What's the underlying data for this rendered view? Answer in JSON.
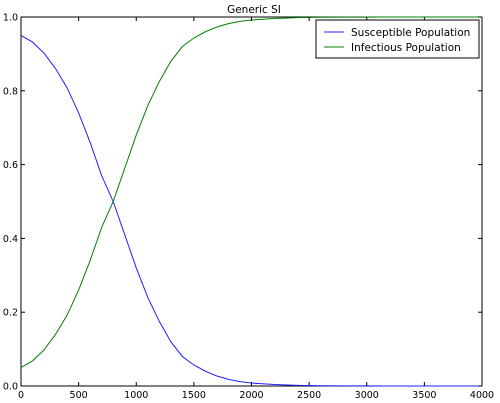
{
  "chart_data": {
    "type": "line",
    "title": "Generic SI",
    "xlabel": "",
    "ylabel": "",
    "xlim": [
      0,
      4000
    ],
    "ylim": [
      0.0,
      1.0
    ],
    "x_ticks": [
      "0",
      "500",
      "1000",
      "1500",
      "2000",
      "2500",
      "3000",
      "3500",
      "4000"
    ],
    "y_ticks": [
      "0.0",
      "0.2",
      "0.4",
      "0.6",
      "0.8",
      "1.0"
    ],
    "grid": false,
    "legend_position": "top-right",
    "series": [
      {
        "name": "Susceptible Population",
        "color": "#1f1fff",
        "x": [
          0,
          100,
          200,
          300,
          400,
          500,
          600,
          700,
          800,
          900,
          1000,
          1100,
          1200,
          1300,
          1400,
          1500,
          1600,
          1700,
          1800,
          1900,
          2000,
          2200,
          2400,
          2600,
          2800,
          3000,
          3500,
          4000
        ],
        "y": [
          0.95,
          0.932,
          0.902,
          0.86,
          0.808,
          0.74,
          0.66,
          0.57,
          0.5,
          0.41,
          0.32,
          0.24,
          0.175,
          0.12,
          0.08,
          0.057,
          0.04,
          0.027,
          0.018,
          0.012,
          0.008,
          0.004,
          0.0018,
          0.0008,
          0.0004,
          0.0002,
          5e-05,
          1e-05
        ]
      },
      {
        "name": "Infectious Population",
        "color": "#008000",
        "x": [
          0,
          100,
          200,
          300,
          400,
          500,
          600,
          700,
          800,
          900,
          1000,
          1100,
          1200,
          1300,
          1400,
          1500,
          1600,
          1700,
          1800,
          1900,
          2000,
          2200,
          2400,
          2600,
          2800,
          3000,
          3500,
          4000
        ],
        "y": [
          0.05,
          0.068,
          0.098,
          0.14,
          0.192,
          0.26,
          0.34,
          0.43,
          0.5,
          0.59,
          0.68,
          0.76,
          0.825,
          0.88,
          0.92,
          0.943,
          0.96,
          0.973,
          0.982,
          0.988,
          0.992,
          0.996,
          0.9982,
          0.9992,
          0.9996,
          0.9998,
          0.99995,
          0.99999
        ]
      }
    ]
  }
}
